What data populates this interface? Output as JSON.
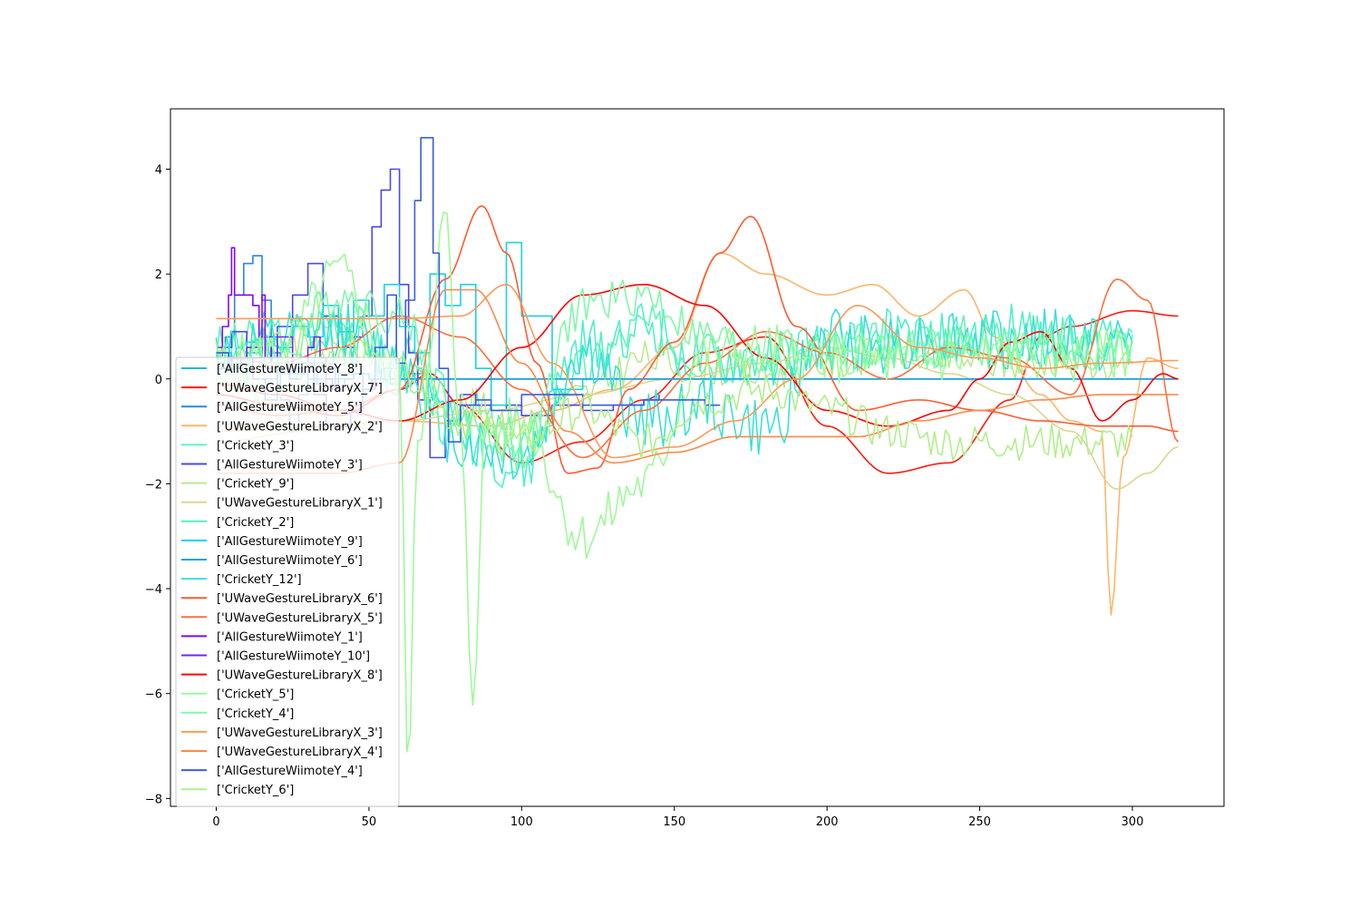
{
  "chart_data": {
    "type": "line",
    "title": "",
    "xlabel": "",
    "ylabel": "",
    "xlim": [
      -15,
      330
    ],
    "ylim": [
      -8.15,
      5.15
    ],
    "xticks": [
      0,
      50,
      100,
      150,
      200,
      250,
      300
    ],
    "yticks": [
      -8,
      -6,
      -4,
      -2,
      0,
      2,
      4
    ],
    "grid": false,
    "legend_position": "lower-left",
    "series": [
      {
        "name": "['AllGestureWiimoteY_8']",
        "color": "#1cb8e0",
        "kind": "step",
        "x": [
          0,
          5,
          10,
          15,
          20,
          25,
          30,
          35,
          40,
          45,
          50,
          55,
          60,
          65,
          70,
          75,
          80,
          85,
          90,
          95,
          100,
          105,
          110,
          115,
          120,
          125,
          130,
          135,
          140,
          145,
          150,
          155,
          160,
          165,
          170,
          175,
          180,
          185,
          190,
          195,
          200,
          205,
          210,
          215,
          220,
          225,
          230,
          235,
          240,
          245,
          250,
          255,
          260,
          265,
          270,
          275,
          280,
          285,
          290,
          295,
          300,
          305,
          310,
          315
        ],
        "y": [
          0.4,
          0.3,
          0.5,
          0.2,
          0.4,
          0.1,
          0.3,
          0.2,
          0.0,
          0.1,
          0.0,
          0.2,
          0.0,
          0.1,
          0.0,
          0.0,
          0.0,
          0.0,
          0.0,
          0.0,
          0.0,
          0.0,
          0.0,
          0.0,
          0.0,
          0.0,
          0.0,
          0.0,
          0.0,
          0.0,
          0.0,
          0.0,
          0.0,
          0.0,
          0.0,
          0.0,
          0.0,
          0.0,
          0.0,
          0.0,
          0.0,
          0.0,
          0.0,
          0.0,
          0.0,
          0.0,
          0.0,
          0.0,
          0.0,
          0.0,
          0.0,
          0.0,
          0.0,
          0.0,
          0.0,
          0.0,
          0.0,
          0.0,
          0.0,
          0.0,
          0.0,
          0.0,
          0.0,
          0.0
        ]
      },
      {
        "name": "['UWaveGestureLibraryX_7']",
        "color": "#ff1a0e",
        "kind": "smooth",
        "x": [
          0,
          20,
          40,
          60,
          70,
          80,
          100,
          120,
          140,
          160,
          180,
          200,
          220,
          240,
          260,
          270,
          280,
          300,
          315
        ],
        "y": [
          -0.3,
          -0.5,
          -0.7,
          -0.2,
          0.1,
          -0.5,
          -1.6,
          -1.2,
          -0.4,
          0.5,
          0.8,
          -0.9,
          -1.8,
          -1.6,
          -0.4,
          0.8,
          1.0,
          1.3,
          1.2
        ]
      },
      {
        "name": "['AllGestureWiimoteY_5']",
        "color": "#2a86e6",
        "kind": "step",
        "x": [
          0,
          3,
          6,
          9,
          12,
          15,
          18,
          21,
          24,
          27,
          30,
          33,
          36,
          39,
          42,
          45,
          48,
          51,
          54,
          57,
          60,
          63,
          66,
          69,
          72,
          75,
          78,
          81,
          84,
          87,
          90,
          93,
          96,
          99,
          102,
          105
        ],
        "y": [
          0.3,
          0.8,
          1.6,
          2.2,
          2.35,
          1.5,
          0.5,
          -0.4,
          -1.0,
          -0.3,
          0.2,
          -0.1,
          0.3,
          -0.2,
          0.0,
          0.1,
          -0.2,
          0.0,
          0.2,
          -0.1,
          0.0,
          0.1,
          0.0,
          0.0,
          0.0,
          0.0,
          0.0,
          0.0,
          0.0,
          0.0,
          0.0,
          0.0,
          0.0,
          0.0,
          0.0,
          0.0
        ]
      },
      {
        "name": "['UWaveGestureLibraryX_2']",
        "color": "#fdb66c",
        "kind": "smooth",
        "x": [
          0,
          30,
          60,
          90,
          110,
          130,
          150,
          165,
          180,
          200,
          215,
          230,
          245,
          255,
          270,
          280,
          290,
          293,
          297,
          305,
          315
        ],
        "y": [
          -1.0,
          -0.9,
          -0.8,
          -0.9,
          -0.6,
          -0.2,
          0.6,
          2.4,
          2.0,
          1.6,
          1.8,
          1.2,
          1.7,
          0.8,
          -0.3,
          -0.8,
          -1.0,
          -4.5,
          -1.5,
          0.4,
          0.2
        ]
      },
      {
        "name": "['CricketY_3']",
        "color": "#5ef6b8",
        "kind": "noisy",
        "seed": 3,
        "noise": 0.45,
        "x": [
          0,
          20,
          40,
          60,
          80,
          100,
          120,
          140,
          160,
          180,
          200,
          220,
          240,
          260,
          280,
          300
        ],
        "y": [
          0.6,
          0.8,
          1.2,
          0.4,
          -0.5,
          -1.2,
          0.2,
          1.0,
          0.4,
          0.3,
          0.6,
          0.7,
          0.8,
          0.9,
          0.8,
          0.7
        ]
      },
      {
        "name": "['AllGestureWiimoteY_3']",
        "color": "#4848ec",
        "kind": "step",
        "x": [
          0,
          5,
          10,
          15,
          20,
          25,
          30,
          35,
          40,
          45,
          48,
          51,
          54,
          57,
          60,
          63,
          66,
          70,
          75,
          80,
          85,
          90,
          95,
          100,
          110,
          120,
          130,
          140,
          145
        ],
        "y": [
          0.6,
          0.9,
          0.4,
          0.8,
          1.0,
          1.6,
          2.2,
          1.2,
          0.6,
          0.8,
          1.2,
          2.9,
          3.6,
          4.0,
          1.8,
          0.5,
          -0.4,
          -1.5,
          -0.8,
          -0.3,
          -0.5,
          -0.6,
          -0.5,
          -0.7,
          -0.5,
          -0.6,
          -0.5,
          -0.4,
          -0.3
        ]
      },
      {
        "name": "['CricketY_9']",
        "color": "#bce88f",
        "kind": "noisy",
        "seed": 9,
        "noise": 0.35,
        "x": [
          0,
          20,
          40,
          60,
          80,
          100,
          120,
          140,
          160,
          180,
          200,
          220,
          240,
          260,
          280,
          300
        ],
        "y": [
          0.4,
          0.6,
          0.9,
          0.2,
          -0.5,
          -0.8,
          -0.3,
          0.4,
          0.2,
          0.1,
          0.3,
          0.5,
          0.4,
          0.3,
          0.4,
          0.2
        ]
      },
      {
        "name": "['UWaveGestureLibraryX_1']",
        "color": "#dcd68f",
        "kind": "smooth",
        "x": [
          0,
          30,
          60,
          90,
          120,
          150,
          180,
          200,
          220,
          240,
          260,
          280,
          295,
          305,
          315
        ],
        "y": [
          -1.2,
          -1.0,
          -0.8,
          -0.6,
          -0.3,
          0.0,
          0.3,
          0.6,
          0.4,
          0.1,
          -0.3,
          -1.0,
          -2.1,
          -1.8,
          -1.3
        ]
      },
      {
        "name": "['CricketY_2']",
        "color": "#4ef0c8",
        "kind": "noisy",
        "seed": 2,
        "noise": 0.55,
        "x": [
          0,
          20,
          40,
          60,
          80,
          100,
          120,
          140,
          160,
          180,
          200,
          220,
          240,
          260,
          280,
          300
        ],
        "y": [
          0.6,
          0.4,
          0.8,
          0.2,
          -1.0,
          -1.8,
          0.6,
          1.0,
          0.3,
          0.4,
          0.6,
          0.8,
          0.7,
          0.9,
          0.7,
          0.7
        ]
      },
      {
        "name": "['AllGestureWiimoteY_9']",
        "color": "#18d3e3",
        "kind": "step",
        "x": [
          0,
          5,
          10,
          15,
          20,
          25,
          30,
          35,
          40,
          45,
          50,
          55,
          60,
          65,
          70,
          75,
          80,
          85,
          90,
          95,
          100,
          110,
          120,
          140,
          160,
          180,
          200,
          240,
          280,
          300,
          315
        ],
        "y": [
          0.5,
          0.3,
          0.7,
          0.2,
          0.6,
          1.0,
          0.8,
          1.4,
          0.9,
          1.5,
          1.2,
          1.8,
          1.0,
          0.5,
          2.0,
          1.4,
          1.8,
          0.2,
          -0.5,
          2.6,
          1.2,
          -0.2,
          0.0,
          0.0,
          0.0,
          0.0,
          0.0,
          0.0,
          0.0,
          0.0,
          0.0
        ]
      },
      {
        "name": "['AllGestureWiimoteY_6']",
        "color": "#1e9fe6",
        "kind": "step",
        "x": [
          0,
          10,
          20,
          30,
          40,
          50,
          60,
          70,
          80,
          100,
          150,
          200,
          250,
          300,
          315
        ],
        "y": [
          0.2,
          0.0,
          0.1,
          0.0,
          0.1,
          0.0,
          0.0,
          0.0,
          0.0,
          0.0,
          0.0,
          0.0,
          0.0,
          0.0,
          0.0
        ]
      },
      {
        "name": "['CricketY_12']",
        "color": "#3ae1d6",
        "kind": "noisy",
        "seed": 12,
        "noise": 0.6,
        "x": [
          0,
          20,
          40,
          60,
          80,
          100,
          120,
          140,
          160,
          180,
          200,
          220,
          240,
          260,
          280,
          300
        ],
        "y": [
          0.5,
          0.7,
          0.9,
          0.3,
          -1.2,
          -1.5,
          0.5,
          -0.8,
          -0.5,
          -1.0,
          0.8,
          0.7,
          0.8,
          0.7,
          0.8,
          0.6
        ]
      },
      {
        "name": "['UWaveGestureLibraryX_6']",
        "color": "#ff5c30",
        "kind": "smooth",
        "x": [
          0,
          20,
          40,
          60,
          75,
          87,
          95,
          105,
          115,
          125,
          135,
          150,
          165,
          175,
          190,
          210,
          230,
          250,
          270,
          290,
          305,
          315
        ],
        "y": [
          -0.5,
          -0.7,
          -0.6,
          -0.2,
          1.9,
          3.3,
          2.4,
          0.3,
          -1.8,
          -1.7,
          -0.2,
          0.7,
          2.4,
          3.1,
          1.0,
          -0.6,
          -0.4,
          -0.6,
          -0.8,
          -0.9,
          -0.9,
          -1.0
        ]
      },
      {
        "name": "['UWaveGestureLibraryX_5']",
        "color": "#ff6e3c",
        "kind": "smooth",
        "x": [
          0,
          20,
          40,
          60,
          80,
          100,
          120,
          140,
          160,
          180,
          200,
          220,
          240,
          260,
          280,
          295,
          305,
          315
        ],
        "y": [
          0.4,
          0.3,
          0.6,
          1.2,
          0.8,
          -0.2,
          -1.5,
          -0.6,
          0.3,
          0.9,
          0.5,
          0.0,
          0.6,
          0.4,
          -0.3,
          1.9,
          1.5,
          -1.2
        ]
      },
      {
        "name": "['AllGestureWiimoteY_1']",
        "color": "#8008f8",
        "kind": "step",
        "x": [
          0,
          2,
          4,
          5,
          6,
          8,
          10,
          12,
          14,
          15,
          16,
          18
        ],
        "y": [
          0.4,
          1.0,
          1.6,
          2.5,
          1.6,
          1.6,
          1.6,
          1.4,
          0.8,
          1.6,
          0.2,
          0.6
        ]
      },
      {
        "name": "['AllGestureWiimoteY_10']",
        "color": "#6c28f2",
        "kind": "step",
        "x": [
          0,
          5,
          10,
          15,
          20,
          25,
          30,
          32,
          34,
          36,
          38,
          40
        ],
        "y": [
          0.2,
          0.4,
          0.6,
          0.4,
          0.8,
          0.2,
          0.6,
          0.8,
          0.4,
          0.0,
          -0.2,
          0.0
        ]
      },
      {
        "name": "['UWaveGestureLibraryX_8']",
        "color": "#ff0000",
        "kind": "smooth",
        "x": [
          0,
          20,
          40,
          60,
          80,
          100,
          120,
          140,
          160,
          180,
          200,
          220,
          240,
          250,
          260,
          270,
          280,
          290,
          300,
          310,
          315
        ],
        "y": [
          -0.1,
          -0.3,
          -0.6,
          -0.8,
          -0.4,
          0.6,
          1.6,
          1.8,
          1.4,
          0.4,
          -0.6,
          -0.9,
          -0.6,
          0.0,
          0.7,
          0.9,
          0.2,
          -0.8,
          -0.4,
          0.1,
          0.0
        ]
      },
      {
        "name": "['CricketY_5']",
        "color": "#9dfa98",
        "kind": "noisy",
        "seed": 5,
        "noise": 0.5,
        "x": [
          0,
          20,
          40,
          60,
          63,
          66,
          75,
          80,
          84,
          88,
          100,
          120,
          140,
          160,
          180,
          200,
          220,
          240,
          260,
          280,
          300
        ],
        "y": [
          0.3,
          0.5,
          2.0,
          0.0,
          -7.4,
          -1.0,
          3.0,
          -1.2,
          -6.0,
          -1.0,
          -0.8,
          -3.0,
          -2.0,
          0.5,
          0.6,
          0.4,
          0.3,
          0.4,
          0.5,
          0.4,
          0.5
        ]
      },
      {
        "name": "['CricketY_4']",
        "color": "#7ff8a8",
        "kind": "noisy",
        "seed": 4,
        "noise": 0.4,
        "x": [
          0,
          20,
          40,
          60,
          80,
          100,
          120,
          140,
          160,
          180,
          200,
          220,
          240,
          260,
          280,
          300
        ],
        "y": [
          0.3,
          0.4,
          1.6,
          1.2,
          -0.8,
          -1.4,
          1.4,
          1.6,
          0.8,
          0.4,
          0.6,
          0.5,
          0.6,
          0.6,
          0.5,
          0.6
        ]
      },
      {
        "name": "['UWaveGestureLibraryX_3']",
        "color": "#fc9a58",
        "kind": "smooth",
        "x": [
          0,
          20,
          40,
          60,
          80,
          95,
          110,
          130,
          150,
          170,
          190,
          210,
          230,
          250,
          270,
          290,
          315
        ],
        "y": [
          1.15,
          1.15,
          1.15,
          1.15,
          1.2,
          1.8,
          0.3,
          -1.5,
          -1.3,
          -0.8,
          0.0,
          1.4,
          0.6,
          0.4,
          0.2,
          0.3,
          0.35
        ]
      },
      {
        "name": "['UWaveGestureLibraryX_4']",
        "color": "#ff8848",
        "kind": "smooth",
        "x": [
          0,
          20,
          40,
          60,
          75,
          85,
          100,
          115,
          130,
          150,
          170,
          190,
          210,
          230,
          250,
          270,
          290,
          300,
          315
        ],
        "y": [
          -1.8,
          -1.8,
          -1.8,
          -1.6,
          1.7,
          1.7,
          0.3,
          -1.0,
          -1.6,
          -1.4,
          -1.1,
          -1.1,
          -1.1,
          -0.8,
          -0.6,
          -0.4,
          -0.3,
          -0.3,
          -0.3
        ]
      },
      {
        "name": "['AllGestureWiimoteY_4']",
        "color": "#3a5de6",
        "kind": "step",
        "x": [
          0,
          4,
          8,
          12,
          16,
          20,
          24,
          28,
          32,
          36,
          40,
          44,
          48,
          52,
          56,
          59,
          62,
          65,
          67,
          69,
          71,
          73,
          76,
          80,
          85,
          90,
          100,
          120,
          140,
          160,
          165
        ],
        "y": [
          0.5,
          0.2,
          0.4,
          0.0,
          -0.4,
          0.2,
          0.0,
          0.3,
          -0.3,
          -0.9,
          -0.9,
          -0.6,
          -0.2,
          0.6,
          1.6,
          0.3,
          1.5,
          3.4,
          4.6,
          4.6,
          2.4,
          0.2,
          -1.2,
          -0.5,
          -0.4,
          -0.6,
          -0.3,
          -0.5,
          -0.4,
          -0.5,
          -0.5
        ]
      },
      {
        "name": "['CricketY_6']",
        "color": "#b0ef8a",
        "kind": "noisy",
        "seed": 6,
        "noise": 0.35,
        "x": [
          0,
          20,
          40,
          60,
          80,
          100,
          120,
          140,
          160,
          180,
          200,
          220,
          240,
          260,
          280,
          300
        ],
        "y": [
          0.2,
          -0.4,
          0.6,
          0.2,
          -0.8,
          -1.2,
          -0.6,
          -1.2,
          -0.4,
          -0.2,
          -0.6,
          -1.0,
          -1.2,
          -1.2,
          -1.2,
          -1.2
        ]
      }
    ]
  }
}
